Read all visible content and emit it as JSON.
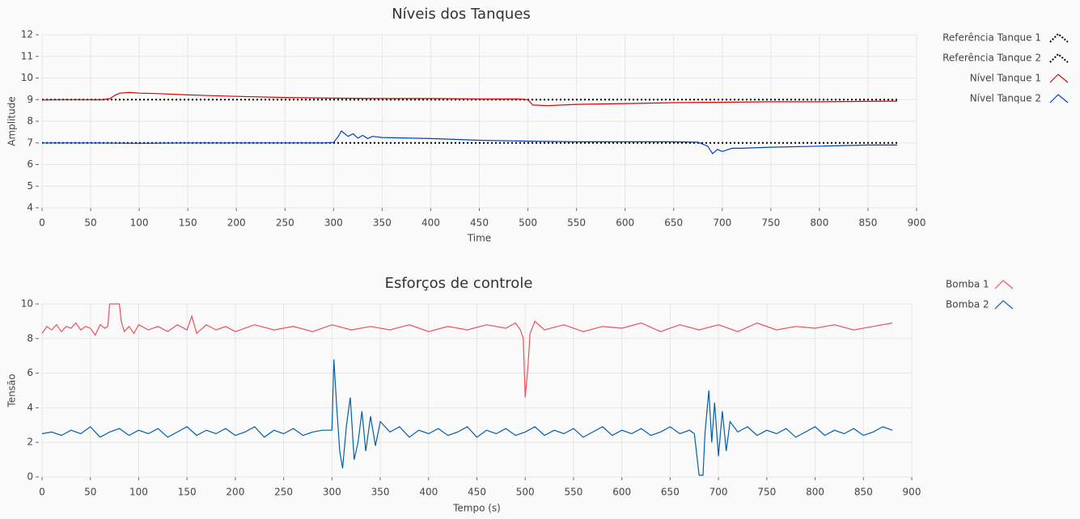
{
  "chart_data": [
    {
      "type": "line",
      "title": "Níveis dos Tanques",
      "xlabel": "Time",
      "ylabel": "Amplitude",
      "xlim": [
        0,
        900
      ],
      "xticks": [
        0,
        50,
        100,
        150,
        200,
        250,
        300,
        350,
        400,
        450,
        500,
        550,
        600,
        650,
        700,
        750,
        800,
        850,
        900
      ],
      "ylim": [
        4,
        12
      ],
      "yticks": [
        4,
        5,
        6,
        7,
        8,
        9,
        10,
        11,
        12
      ],
      "grid": true,
      "series": [
        {
          "name": "Referência Tanque 1",
          "color": "#000000",
          "style": "dotted",
          "x": [
            0,
            880
          ],
          "values": [
            9,
            9
          ]
        },
        {
          "name": "Referência Tanque 2",
          "color": "#000000",
          "style": "dotted",
          "x": [
            0,
            880
          ],
          "values": [
            7,
            7
          ]
        },
        {
          "name": "Nível Tanque 1",
          "color": "#e00000",
          "style": "solid",
          "x": [
            0,
            20,
            40,
            60,
            70,
            75,
            80,
            90,
            100,
            120,
            150,
            200,
            250,
            300,
            350,
            400,
            450,
            490,
            500,
            505,
            520,
            550,
            600,
            650,
            700,
            750,
            800,
            850,
            880
          ],
          "values": [
            8.98,
            9.0,
            9.0,
            8.99,
            9.05,
            9.2,
            9.3,
            9.33,
            9.3,
            9.28,
            9.22,
            9.15,
            9.1,
            9.07,
            9.05,
            9.05,
            9.03,
            9.03,
            9.0,
            8.75,
            8.72,
            8.78,
            8.82,
            8.86,
            8.88,
            8.9,
            8.9,
            8.92,
            8.93
          ]
        },
        {
          "name": "Nível Tanque 2",
          "color": "#0040c0",
          "style": "solid",
          "x": [
            0,
            50,
            100,
            150,
            200,
            250,
            290,
            300,
            305,
            308,
            315,
            320,
            325,
            330,
            335,
            340,
            350,
            400,
            450,
            500,
            550,
            600,
            650,
            675,
            685,
            690,
            695,
            700,
            710,
            720,
            750,
            800,
            850,
            880
          ],
          "values": [
            7.0,
            7.0,
            6.98,
            7.0,
            7.0,
            7.0,
            7.0,
            7.02,
            7.3,
            7.55,
            7.3,
            7.42,
            7.22,
            7.35,
            7.2,
            7.3,
            7.25,
            7.2,
            7.12,
            7.08,
            7.05,
            7.05,
            7.05,
            7.03,
            6.85,
            6.5,
            6.7,
            6.6,
            6.75,
            6.75,
            6.8,
            6.85,
            6.9,
            6.9
          ]
        }
      ]
    },
    {
      "type": "line",
      "title": "Esforços de controle",
      "xlabel": "Tempo (s)",
      "ylabel": "Tensão",
      "xlim": [
        0,
        900
      ],
      "xticks": [
        0,
        50,
        100,
        150,
        200,
        250,
        300,
        350,
        400,
        450,
        500,
        550,
        600,
        650,
        700,
        750,
        800,
        850,
        900
      ],
      "ylim": [
        0,
        10
      ],
      "yticks": [
        0,
        2,
        4,
        6,
        8,
        10
      ],
      "grid": true,
      "series": [
        {
          "name": "Bomba 1",
          "color": "#f0505a",
          "style": "solid",
          "x": [
            0,
            5,
            10,
            15,
            20,
            25,
            30,
            35,
            40,
            45,
            50,
            55,
            60,
            65,
            68,
            70,
            80,
            82,
            85,
            90,
            95,
            100,
            110,
            120,
            130,
            140,
            150,
            155,
            160,
            170,
            180,
            190,
            200,
            220,
            240,
            260,
            280,
            300,
            320,
            340,
            360,
            380,
            400,
            420,
            440,
            460,
            480,
            490,
            495,
            498,
            500,
            503,
            505,
            510,
            520,
            540,
            560,
            580,
            600,
            620,
            640,
            660,
            680,
            700,
            720,
            740,
            760,
            780,
            800,
            820,
            840,
            860,
            880
          ],
          "values": [
            8.3,
            8.7,
            8.5,
            8.8,
            8.4,
            8.7,
            8.6,
            8.9,
            8.5,
            8.7,
            8.6,
            8.2,
            8.8,
            8.6,
            8.7,
            10,
            10,
            9.0,
            8.4,
            8.7,
            8.3,
            8.8,
            8.5,
            8.7,
            8.4,
            8.8,
            8.5,
            9.3,
            8.3,
            8.8,
            8.5,
            8.7,
            8.4,
            8.8,
            8.5,
            8.7,
            8.4,
            8.8,
            8.5,
            8.7,
            8.5,
            8.8,
            8.4,
            8.7,
            8.5,
            8.8,
            8.6,
            8.9,
            8.5,
            8.0,
            4.6,
            6.5,
            8.3,
            9.0,
            8.5,
            8.8,
            8.4,
            8.7,
            8.6,
            8.9,
            8.4,
            8.8,
            8.5,
            8.8,
            8.4,
            8.9,
            8.5,
            8.7,
            8.6,
            8.8,
            8.5,
            8.7,
            8.9
          ]
        },
        {
          "name": "Bomba 2",
          "color": "#0060a8",
          "style": "solid",
          "x": [
            0,
            10,
            20,
            30,
            40,
            50,
            60,
            70,
            80,
            90,
            100,
            110,
            120,
            130,
            140,
            150,
            160,
            170,
            180,
            190,
            200,
            210,
            220,
            230,
            240,
            250,
            260,
            270,
            280,
            290,
            300,
            302,
            305,
            308,
            311,
            315,
            319,
            323,
            327,
            331,
            335,
            340,
            345,
            350,
            360,
            370,
            380,
            390,
            400,
            410,
            420,
            430,
            440,
            450,
            460,
            470,
            480,
            490,
            500,
            510,
            520,
            530,
            540,
            550,
            560,
            570,
            580,
            590,
            600,
            610,
            620,
            630,
            640,
            650,
            660,
            670,
            675,
            680,
            684,
            686,
            690,
            693,
            696,
            700,
            704,
            708,
            712,
            720,
            730,
            740,
            750,
            760,
            770,
            780,
            790,
            800,
            810,
            820,
            830,
            840,
            850,
            860,
            870,
            880
          ],
          "values": [
            2.5,
            2.6,
            2.4,
            2.7,
            2.5,
            2.9,
            2.3,
            2.6,
            2.8,
            2.4,
            2.7,
            2.5,
            2.8,
            2.3,
            2.6,
            2.9,
            2.4,
            2.7,
            2.5,
            2.8,
            2.4,
            2.6,
            2.9,
            2.3,
            2.7,
            2.5,
            2.8,
            2.4,
            2.6,
            2.7,
            2.7,
            6.8,
            4.0,
            1.5,
            0.5,
            3.0,
            4.6,
            1.0,
            2.0,
            3.8,
            1.5,
            3.5,
            1.8,
            3.2,
            2.6,
            2.9,
            2.3,
            2.7,
            2.5,
            2.8,
            2.4,
            2.6,
            2.9,
            2.3,
            2.7,
            2.5,
            2.8,
            2.4,
            2.6,
            2.9,
            2.4,
            2.7,
            2.5,
            2.8,
            2.3,
            2.6,
            2.9,
            2.4,
            2.7,
            2.5,
            2.8,
            2.4,
            2.6,
            2.9,
            2.5,
            2.7,
            2.5,
            0.1,
            0.1,
            2.5,
            5.0,
            2.0,
            4.3,
            1.2,
            3.8,
            1.5,
            3.2,
            2.6,
            2.9,
            2.4,
            2.7,
            2.5,
            2.8,
            2.3,
            2.6,
            2.9,
            2.4,
            2.7,
            2.5,
            2.8,
            2.4,
            2.6,
            2.9,
            2.7
          ]
        }
      ]
    }
  ]
}
